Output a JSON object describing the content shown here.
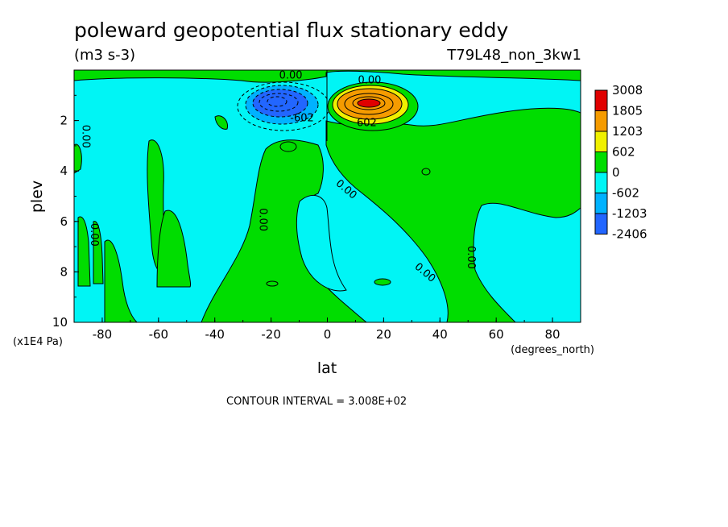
{
  "chart_data": {
    "type": "contour",
    "title": "poleward geopotential flux stationary eddy",
    "units": "(m3 s-3)",
    "run_label": "T79L48_non_3kw1",
    "xlabel": "lat",
    "x_units": "(degrees_north)",
    "ylabel": "plev",
    "y_units": "(x1E4 Pa)",
    "xlim": [
      -90,
      90
    ],
    "ylim": [
      0,
      10
    ],
    "y_inverted": true,
    "x_ticks": [
      -80,
      -60,
      -40,
      -20,
      0,
      20,
      40,
      60,
      80
    ],
    "y_ticks": [
      2,
      4,
      6,
      8,
      10
    ],
    "contour_interval_text": "CONTOUR INTERVAL = 3.008E+02",
    "colorbar": {
      "labels": [
        "3008",
        "1805",
        "1203",
        "602",
        "0",
        "-602",
        "-1203",
        "-2406"
      ],
      "colors": [
        "#e00000",
        "#f59b00",
        "#f0f000",
        "#00dd00",
        "#00f5f5",
        "#00b2ff",
        "#2266ff"
      ]
    },
    "regions": [
      {
        "name": "negative core",
        "lat_range": [
          -25,
          -3
        ],
        "plev_range": [
          0.8,
          2.2
        ],
        "value": -2406
      },
      {
        "name": "positive core",
        "lat_range": [
          2,
          28
        ],
        "plev_range": [
          0.8,
          2.2
        ],
        "value": 3008
      }
    ],
    "contour_labels": [
      {
        "text": "0.00",
        "lat": -13,
        "plev": 0.2
      },
      {
        "text": "0.00",
        "lat": 15,
        "plev": 0.4
      },
      {
        "text": "-602",
        "lat": -9,
        "plev": 1.9
      },
      {
        "text": "602",
        "lat": 14,
        "plev": 2.1
      },
      {
        "text": "0.00",
        "lat": -87,
        "plev": 2.5
      },
      {
        "text": "0.00",
        "lat": -84,
        "plev": 6.4
      },
      {
        "text": "0.00",
        "lat": -24,
        "plev": 5.8
      },
      {
        "text": "0.00",
        "lat": 6,
        "plev": 4.7
      },
      {
        "text": "0.00",
        "lat": 34,
        "plev": 8.0
      },
      {
        "text": "0.00",
        "lat": 50,
        "plev": 7.3
      }
    ]
  }
}
